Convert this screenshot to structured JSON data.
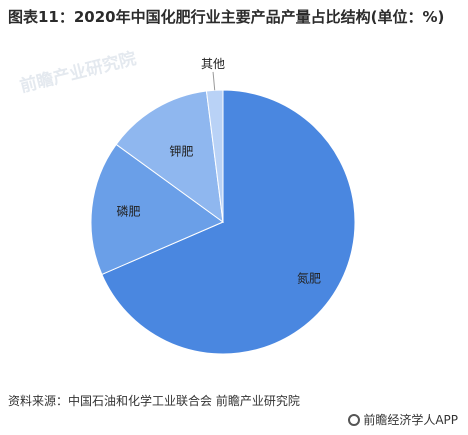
{
  "title": "图表11：2020年中国化肥行业主要产品产量占比结构(单位：%)",
  "watermark": "前瞻产业研究院",
  "source": "资料来源：中国石油和化学工业联合会 前瞻产业研究院",
  "logo_text": "前瞻经济学人APP",
  "chart_data": {
    "type": "pie",
    "categories": [
      "氮肥",
      "磷肥",
      "钾肥",
      "其他"
    ],
    "values": [
      68.5,
      16.5,
      13.0,
      2.0
    ],
    "colors": [
      "#4a87e0",
      "#6a9fe8",
      "#8fb7ef",
      "#b9d2f6"
    ],
    "legend": "none",
    "labels_on_slices": true
  }
}
